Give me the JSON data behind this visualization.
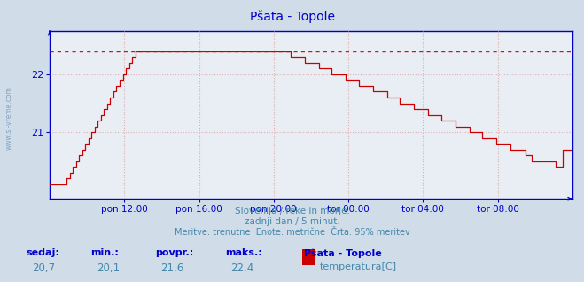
{
  "title": "Pšata - Topole",
  "background_color": "#d0dce8",
  "plot_bg_color": "#e8eef4",
  "line_color": "#cc0000",
  "axis_color": "#0000cc",
  "grid_color": "#ddaaaa",
  "dotted_line_color": "#ff0000",
  "text_color": "#4488aa",
  "watermark": "www.si-vreme.com",
  "subtitle1": "Slovenija / reke in morje.",
  "subtitle2": "zadnji dan / 5 minut.",
  "subtitle3": "Meritve: trenutne  Enote: metrične  Črta: 95% meritev",
  "footer_labels": [
    "sedaj:",
    "min.:",
    "povpr.:",
    "maks.:"
  ],
  "footer_values": [
    "20,7",
    "20,1",
    "21,6",
    "22,4"
  ],
  "legend_station": "Pšata - Topole",
  "legend_param": "temperatura[C]",
  "legend_color": "#cc0000",
  "xticklabels": [
    "pon 12:00",
    "pon 16:00",
    "pon 20:00",
    "tor 00:00",
    "tor 04:00",
    "tor 08:00"
  ],
  "yticks": [
    21,
    22
  ],
  "ymin": 19.85,
  "ymax": 22.75,
  "max_line_y": 22.4,
  "tick_positions": [
    48,
    96,
    144,
    192,
    240,
    288
  ],
  "xlim_left": 0,
  "xlim_right": 336,
  "n_points": 336
}
